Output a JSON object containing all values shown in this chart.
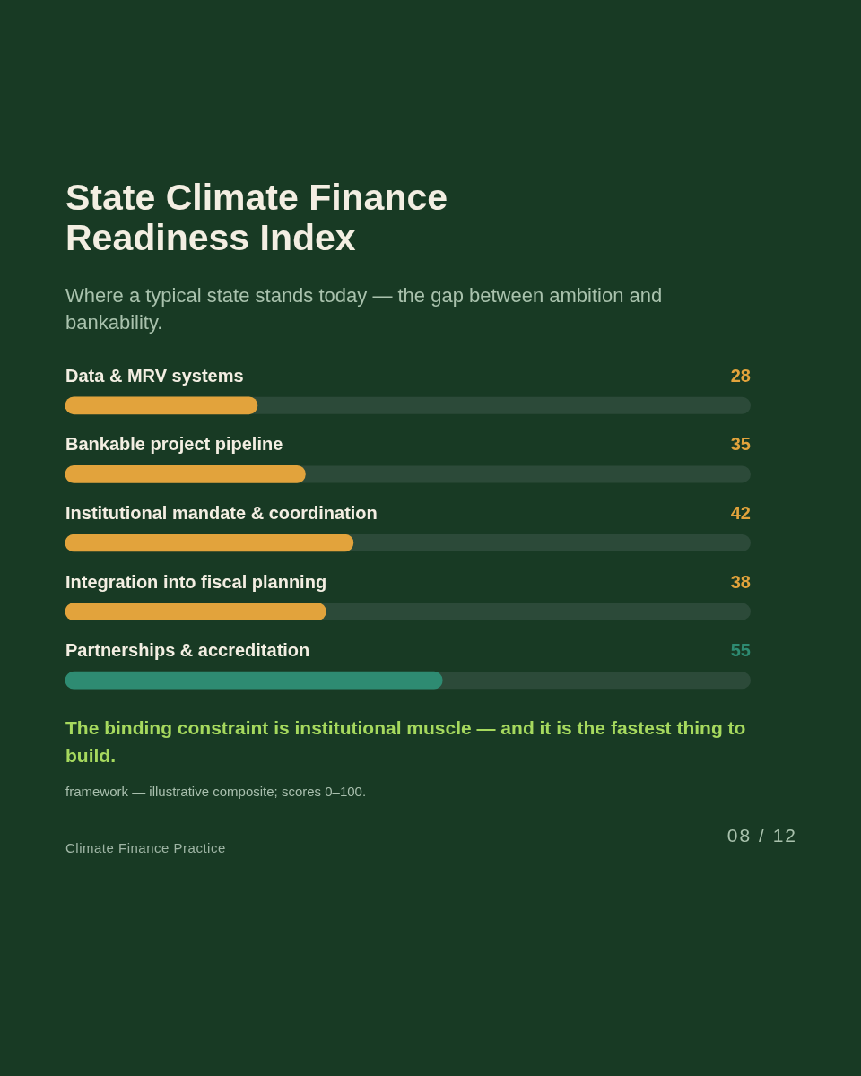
{
  "chart_data": {
    "type": "bar",
    "orientation": "horizontal",
    "title": "State Climate Finance Readiness Index",
    "subtitle": "Where a typical state stands today — the gap between ambition and bankability.",
    "categories": [
      "Data & MRV systems",
      "Bankable project pipeline",
      "Institutional mandate & coordination",
      "Integration into fiscal planning",
      "Partnerships & accreditation"
    ],
    "values": [
      28,
      35,
      42,
      38,
      55
    ],
    "colors": [
      "#e2a33c",
      "#e2a33c",
      "#e2a33c",
      "#e2a33c",
      "#2e8b72"
    ],
    "xlim": [
      0,
      100
    ],
    "data_labels": true,
    "tick_labels": "y",
    "annotations": [
      "The binding constraint is institutional muscle — and it is the fastest thing to build.",
      "framework — illustrative composite; scores 0–100.",
      "Climate Finance Practice",
      "08 / 12"
    ]
  }
}
